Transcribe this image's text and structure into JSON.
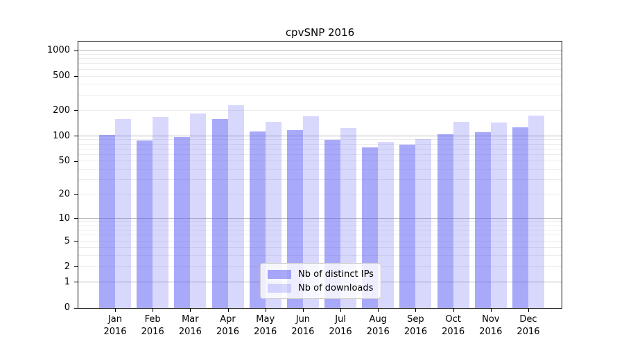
{
  "chart_data": {
    "type": "bar",
    "title": "cpvSNP 2016",
    "categories": [
      "Jan\n2016",
      "Feb\n2016",
      "Mar\n2016",
      "Apr\n2016",
      "May\n2016",
      "Jun\n2016",
      "Jul\n2016",
      "Aug\n2016",
      "Sep\n2016",
      "Oct\n2016",
      "Nov\n2016",
      "Dec\n2016"
    ],
    "series": [
      {
        "name": "Nb of distinct IPs",
        "color": "rgba(90,90,245,0.52)",
        "values": [
          104,
          88,
          98,
          160,
          113,
          117,
          91,
          74,
          80,
          106,
          111,
          126
        ]
      },
      {
        "name": "Nb of downloads",
        "color": "rgba(90,90,245,0.24)",
        "values": [
          158,
          167,
          183,
          232,
          148,
          172,
          124,
          86,
          92,
          148,
          144,
          174
        ]
      }
    ],
    "xlabel": "",
    "ylabel": "",
    "y_tick_values": [
      0,
      1,
      2,
      5,
      10,
      20,
      50,
      100,
      200,
      500,
      1000
    ],
    "y_scale": "log10(value+1)",
    "ylim": [
      0,
      1280
    ],
    "grid": "horizontal; dark major lines at 1,10,100,1000; faint minor lines at 2-9 multiples",
    "legend_position": "lower center inside plot"
  },
  "colors": {
    "background": "#ffffff",
    "bar_distinct_ips": "rgba(90,90,245,0.52)",
    "bar_downloads": "rgba(90,90,245,0.24)",
    "grid_major": "#b5b5b5",
    "grid_minor": "#ebebeb",
    "axis": "#000000",
    "text": "#000000",
    "legend_border": "#cccccc",
    "legend_background": "rgba(255,255,255,0.8)"
  }
}
